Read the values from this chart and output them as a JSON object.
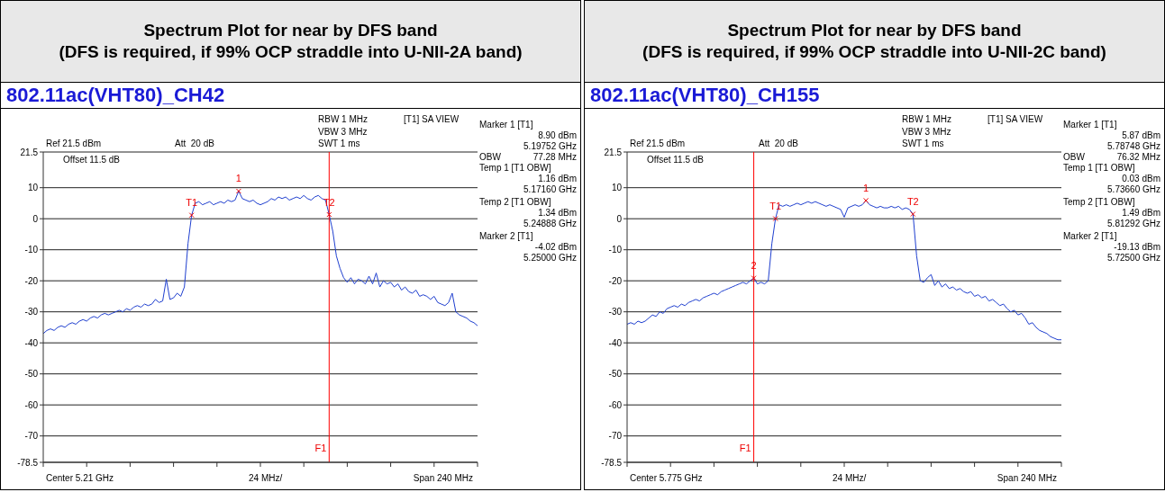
{
  "chart_data": [
    {
      "type": "line",
      "title": "Spectrum Plot for near by DFS band\n(DFS is required, if 99% OCP straddle into U-NII-2A band)",
      "subtitle": "802.11ac(VHT80)_CH42",
      "categories": [
        null,
        null,
        null,
        null,
        null,
        null,
        null,
        null,
        null,
        null,
        null,
        null,
        null,
        null,
        null,
        null,
        null,
        null,
        null,
        null,
        null,
        null,
        null,
        null,
        null,
        null,
        null,
        null,
        null,
        null,
        null,
        null,
        null,
        null,
        null,
        null,
        null,
        null,
        null,
        null,
        null,
        null,
        null,
        null,
        null,
        null,
        null,
        null,
        null,
        null,
        null,
        null,
        null,
        null,
        null,
        null,
        null,
        null,
        null,
        null,
        null,
        null,
        null,
        null,
        null,
        null,
        null,
        null,
        null,
        null,
        null,
        null,
        null,
        null,
        null,
        null,
        null,
        null,
        null,
        null,
        null,
        null,
        null,
        null,
        null,
        null,
        null,
        null,
        null,
        null,
        null,
        null,
        null,
        null,
        null,
        null,
        null,
        null,
        null,
        null,
        null,
        null,
        null,
        null,
        null,
        null,
        null,
        null,
        null,
        null,
        null,
        null,
        null,
        null,
        null,
        null,
        null,
        null,
        null,
        null,
        null
      ],
      "series": [
        {
          "color": "#1f3fcf",
          "values": [
            -37,
            -36,
            -35.5,
            -36,
            -35,
            -34.5,
            -35,
            -34,
            -33.5,
            -34,
            -33,
            -32.5,
            -33,
            -32,
            -31.5,
            -32,
            -31,
            -30.5,
            -31,
            -30.5,
            -30,
            -29.5,
            -30,
            -29,
            -29.5,
            -28.5,
            -28,
            -28.5,
            -27.5,
            -28,
            -27.5,
            -26,
            -27,
            -26.5,
            -19.5,
            -26,
            -25.5,
            -24,
            -25,
            -22,
            -8,
            1.16,
            5,
            5.5,
            4.5,
            5,
            5.5,
            4.5,
            5,
            5.5,
            5,
            6,
            5.5,
            6,
            8.9,
            6.5,
            6,
            5.5,
            6,
            5,
            4.5,
            5,
            5.5,
            6.5,
            6,
            7,
            6.5,
            7,
            6,
            6.5,
            7,
            6.5,
            7.5,
            6.5,
            6,
            7,
            7.5,
            6.5,
            6,
            1.34,
            -4.02,
            -12,
            -16,
            -19,
            -20.5,
            -19,
            -21,
            -19.5,
            -20,
            -21,
            -18.5,
            -21,
            -17.5,
            -22,
            -20,
            -21,
            -20.5,
            -22,
            -21,
            -23,
            -22,
            -23.5,
            -24,
            -23,
            -25,
            -24.5,
            -25,
            -26,
            -25,
            -27,
            -27.5,
            -28,
            -27,
            -24,
            -30,
            -31,
            -31.5,
            -32,
            -33,
            -33.5,
            -34.5
          ]
        }
      ],
      "ylim": [
        -78.5,
        21.5
      ],
      "yticks": [
        21.5,
        10,
        0,
        -10,
        -20,
        -30,
        -40,
        -50,
        -60,
        -70,
        -78.5
      ],
      "grid": "y",
      "marker": "none",
      "line_style": "solid",
      "legend": false,
      "annotations": [
        "Ref 21.5 dBm",
        "Att  20 dB",
        "Offset 11.5 dB",
        "RBW 1 MHz",
        "VBW 3 MHz",
        "SWT 1 ms",
        "[T1] SA VIEW",
        "Marker 1 [T1]",
        "8.90 dBm",
        "5.19752 GHz",
        "OBW",
        "77.28 MHz",
        "Temp 1 [T1 OBW]",
        "1.16 dBm",
        "5.17160 GHz",
        "Temp 2 [T1 OBW]",
        "1.34 dBm",
        "5.24888 GHz",
        "Marker 2 [T1]",
        "-4.02 dBm",
        "5.25000 GHz",
        "Center 5.21 GHz",
        "24 MHz/",
        "Span 240 MHz",
        "F1",
        {
          "text": "T1",
          "y": 1.16
        },
        {
          "text": "1",
          "y": 8.9
        },
        {
          "text": "T2",
          "y": 1.34
        }
      ]
    },
    {
      "type": "line",
      "title": "Spectrum Plot for near by DFS band\n(DFS is required, if 99% OCP straddle into U-NII-2C band)",
      "subtitle": "802.11ac(VHT80)_CH155",
      "categories": [
        null,
        null,
        null,
        null,
        null,
        null,
        null,
        null,
        null,
        null,
        null,
        null,
        null,
        null,
        null,
        null,
        null,
        null,
        null,
        null,
        null,
        null,
        null,
        null,
        null,
        null,
        null,
        null,
        null,
        null,
        null,
        null,
        null,
        null,
        null,
        null,
        null,
        null,
        null,
        null,
        null,
        null,
        null,
        null,
        null,
        null,
        null,
        null,
        null,
        null,
        null,
        null,
        null,
        null,
        null,
        null,
        null,
        null,
        null,
        null,
        null,
        null,
        null,
        null,
        null,
        null,
        null,
        null,
        null,
        null,
        null,
        null,
        null,
        null,
        null,
        null,
        null,
        null,
        null,
        null,
        null,
        null,
        null,
        null,
        null,
        null,
        null,
        null,
        null,
        null,
        null,
        null,
        null,
        null,
        null,
        null,
        null,
        null,
        null,
        null,
        null,
        null,
        null,
        null,
        null,
        null,
        null,
        null,
        null,
        null,
        null,
        null,
        null,
        null,
        null,
        null,
        null,
        null,
        null,
        null,
        null
      ],
      "series": [
        {
          "color": "#1f3fcf",
          "values": [
            -34,
            -33.5,
            -34,
            -33,
            -33.5,
            -33,
            -32,
            -31,
            -31.5,
            -30,
            -30.5,
            -29,
            -28.5,
            -28,
            -28.5,
            -27.5,
            -28,
            -27,
            -26.5,
            -26,
            -26.5,
            -25.5,
            -25,
            -24.5,
            -24,
            -24.5,
            -23.5,
            -23,
            -22.5,
            -22,
            -21.5,
            -21,
            -20.5,
            -21,
            -20,
            -19.13,
            -21,
            -20.5,
            -21,
            -20,
            -8,
            0.03,
            4.5,
            4,
            4.5,
            4,
            4.5,
            5,
            4.5,
            5,
            5.5,
            5,
            5.5,
            5,
            4.5,
            4,
            4.5,
            4,
            3.5,
            3,
            0.5,
            3.5,
            4,
            4.5,
            4,
            4.5,
            5.87,
            4.5,
            4,
            3.5,
            4,
            3.5,
            3.5,
            4,
            3.5,
            4,
            3,
            3.5,
            3,
            1.49,
            -12,
            -20,
            -20.5,
            -19,
            -18,
            -21.5,
            -20,
            -22,
            -21,
            -22.5,
            -22,
            -23,
            -22.5,
            -23.5,
            -24,
            -23.5,
            -25,
            -24.5,
            -25.5,
            -25,
            -26.5,
            -26,
            -27,
            -28,
            -27.5,
            -29,
            -30,
            -29.5,
            -31,
            -30.5,
            -32,
            -34,
            -33.5,
            -35,
            -36,
            -36.5,
            -37,
            -38,
            -38.5,
            -39,
            -39
          ]
        }
      ],
      "ylim": [
        -78.5,
        21.5
      ],
      "yticks": [
        21.5,
        10,
        0,
        -10,
        -20,
        -30,
        -40,
        -50,
        -60,
        -70,
        -78.5
      ],
      "grid": "y",
      "marker": "none",
      "line_style": "solid",
      "legend": false,
      "annotations": [
        "Ref 21.5 dBm",
        "Att  20 dB",
        "Offset 11.5 dB",
        "RBW 1 MHz",
        "VBW 3 MHz",
        "SWT 1 ms",
        "[T1] SA VIEW",
        "Marker 1 [T1]",
        "5.87 dBm",
        "5.78748 GHz",
        "OBW",
        "76.32 MHz",
        "Temp 1 [T1 OBW]",
        "0.03 dBm",
        "5.73660 GHz",
        "Temp 2 [T1 OBW]",
        "1.49 dBm",
        "5.81292 GHz",
        "Marker 2 [T1]",
        "-19.13 dBm",
        "5.72500 GHz",
        "Center 5.775 GHz",
        "24 MHz/",
        "Span 240 MHz",
        "F1",
        {
          "text": "T1",
          "y": 0.03
        },
        {
          "text": "1",
          "y": 5.87
        },
        {
          "text": "T2",
          "y": 1.49
        },
        {
          "text": "2",
          "y": -19.13
        }
      ]
    }
  ]
}
